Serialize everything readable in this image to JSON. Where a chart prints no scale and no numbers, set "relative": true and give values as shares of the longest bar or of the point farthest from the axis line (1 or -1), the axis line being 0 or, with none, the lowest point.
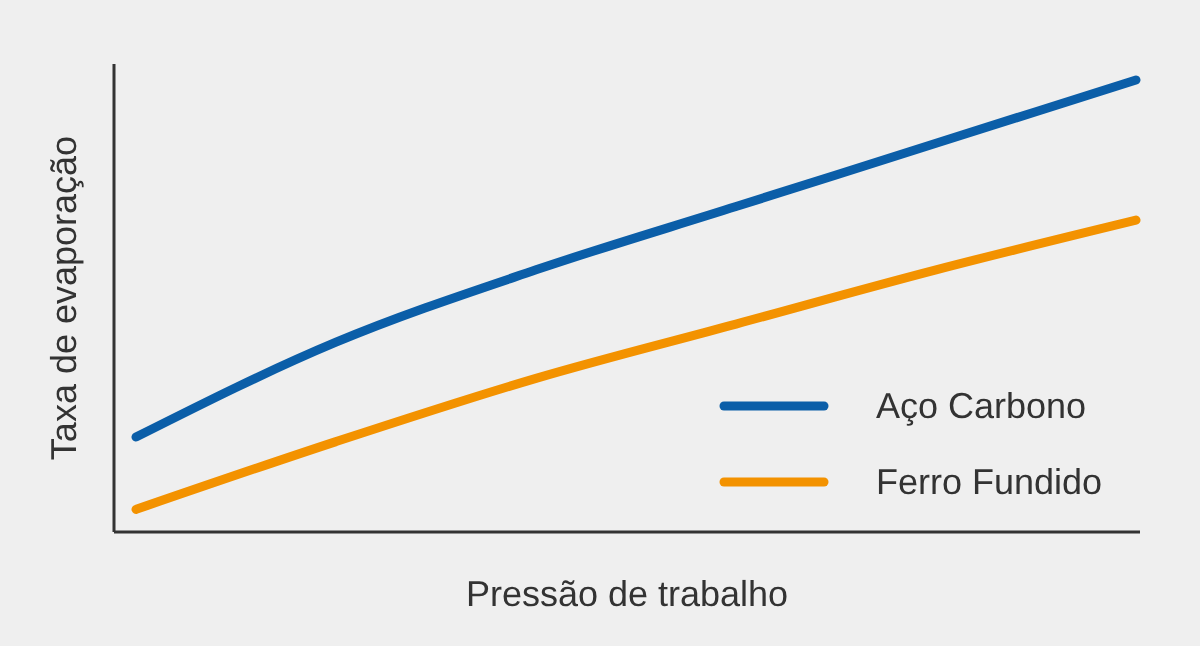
{
  "chart_data": {
    "type": "line",
    "relative": true,
    "xlabel": "Pressão de trabalho",
    "ylabel": "Taxa de evaporação",
    "categories": [
      null,
      null,
      null,
      null,
      null,
      null
    ],
    "series": [
      {
        "name": "Aço Carbono",
        "color": "#0b5ea8",
        "values": [
          0.21,
          0.42,
          0.58,
          0.72,
          0.86,
          1
        ]
      },
      {
        "name": "Ferro Fundido",
        "color": "#f39200",
        "values": [
          0.05,
          0.2,
          0.34,
          0.46,
          0.58,
          0.69
        ]
      }
    ],
    "legend": "bottom right",
    "marker": "none",
    "line_style": "solid"
  }
}
